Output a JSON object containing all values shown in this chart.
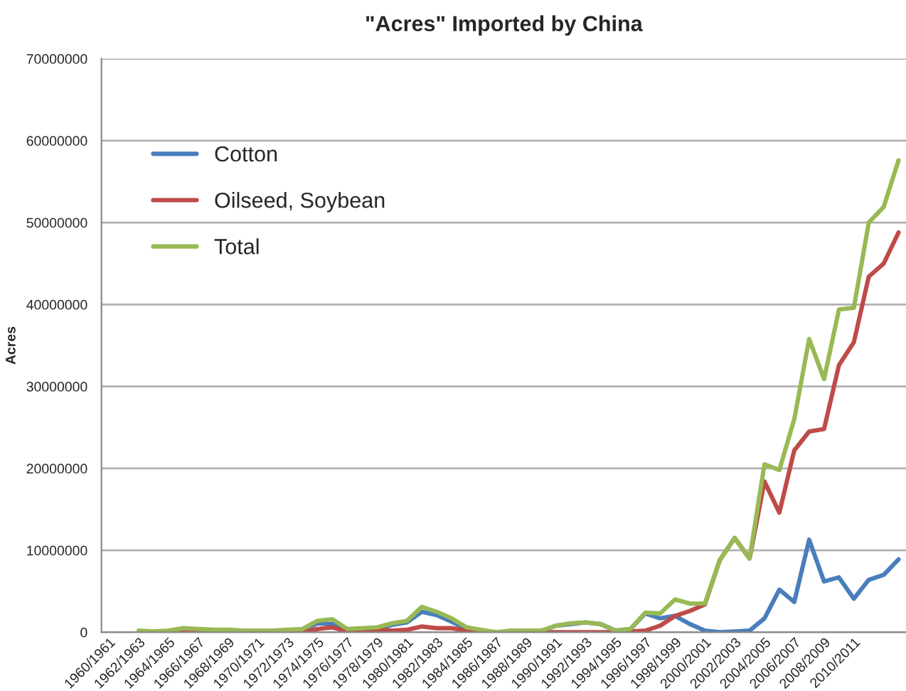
{
  "chart_data": {
    "type": "line",
    "title": "\"Acres\" Imported by China",
    "ylabel": "Acres",
    "categories": [
      "1960/1961",
      null,
      "1962/1963",
      null,
      "1964/1965",
      null,
      "1966/1967",
      null,
      "1968/1969",
      null,
      "1970/1971",
      null,
      "1972/1973",
      null,
      "1974/1975",
      null,
      "1976/1977",
      null,
      "1978/1979",
      null,
      "1980/1981",
      null,
      "1982/1983",
      null,
      "1984/1985",
      null,
      "1986/1987",
      null,
      "1988/1989",
      null,
      "1990/1991",
      null,
      "1992/1993",
      null,
      "1994/1995",
      null,
      "1996/1997",
      null,
      "1998/1999",
      null,
      "2000/2001",
      null,
      "2002/2003",
      null,
      "2004/2005",
      null,
      "2006/2007",
      null,
      "2008/2009",
      null,
      "2010/2011",
      null,
      null,
      null
    ],
    "series": [
      {
        "name": "Cotton",
        "color": "#4a7ebb",
        "values": [
          null,
          null,
          null,
          null,
          null,
          null,
          null,
          null,
          null,
          null,
          null,
          null,
          200000,
          200000,
          1100000,
          1000000,
          200000,
          300000,
          400000,
          900000,
          1200000,
          2500000,
          2100000,
          1300000,
          400000,
          200000,
          0,
          0,
          0,
          100000,
          800000,
          1000000,
          1200000,
          1000000,
          200000,
          400000,
          2300000,
          1700000,
          2000000,
          1000000,
          200000,
          0,
          100000,
          200000,
          1700000,
          5200000,
          3700000,
          11300000,
          6200000,
          6700000,
          4100000,
          6400000,
          7000000,
          8900000
        ]
      },
      {
        "name": "Oilseed, Soybean",
        "color": "#be4b48",
        "values": [
          null,
          null,
          0,
          0,
          0,
          0,
          0,
          0,
          0,
          0,
          0,
          0,
          0,
          0,
          400000,
          600000,
          100000,
          100000,
          300000,
          200000,
          300000,
          700000,
          500000,
          500000,
          200000,
          0,
          0,
          0,
          0,
          0,
          0,
          0,
          0,
          0,
          0,
          100000,
          200000,
          800000,
          2000000,
          2600000,
          3400000,
          8800000,
          11500000,
          9000000,
          18400000,
          14600000,
          22200000,
          24500000,
          24800000,
          32600000,
          35400000,
          43400000,
          45000000,
          48800000
        ]
      },
      {
        "name": "Total",
        "color": "#98b954",
        "values": [
          null,
          null,
          200000,
          100000,
          200000,
          500000,
          400000,
          300000,
          300000,
          200000,
          200000,
          200000,
          300000,
          400000,
          1400000,
          1600000,
          400000,
          500000,
          600000,
          1100000,
          1400000,
          3100000,
          2500000,
          1700000,
          600000,
          300000,
          0,
          200000,
          200000,
          200000,
          800000,
          1100000,
          1200000,
          1000000,
          200000,
          400000,
          2400000,
          2300000,
          4000000,
          3500000,
          3500000,
          8800000,
          11500000,
          9000000,
          20500000,
          19800000,
          26000000,
          35800000,
          30900000,
          39400000,
          39600000,
          50000000,
          51900000,
          57600000
        ]
      }
    ],
    "ylim": [
      0,
      70000000
    ],
    "yticks": [
      0,
      10000000,
      20000000,
      30000000,
      40000000,
      50000000,
      60000000,
      70000000
    ],
    "grid": "y",
    "legend": "center left",
    "marker": "none",
    "line_style": "solid"
  }
}
